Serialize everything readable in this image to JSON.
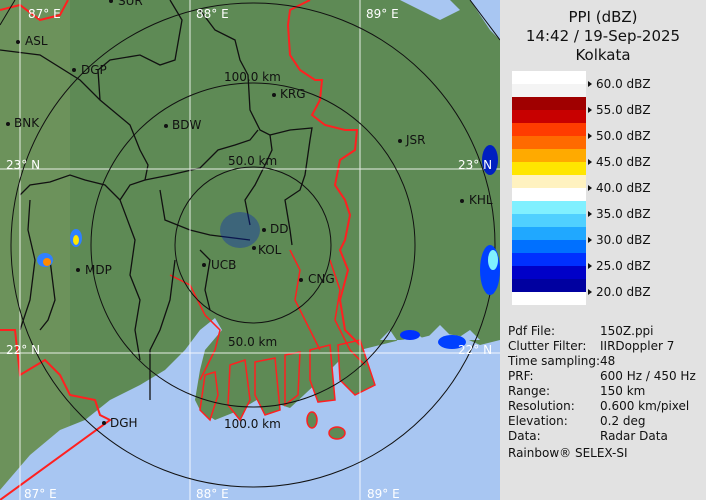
{
  "header": {
    "product": "PPI (dBZ)",
    "datetime": "14:42 / 19-Sep-2025",
    "station": "Kolkata"
  },
  "legend": [
    {
      "label": "60.0 dBZ",
      "colors": [
        "#ffffff",
        "#f4f4f4"
      ]
    },
    {
      "label": "55.0 dBZ",
      "colors": [
        "#a00000",
        "#c80000"
      ]
    },
    {
      "label": "50.0 dBZ",
      "colors": [
        "#ff3c00",
        "#ff6a00"
      ]
    },
    {
      "label": "45.0 dBZ",
      "colors": [
        "#ffaa00",
        "#ffe600"
      ]
    },
    {
      "label": "40.0 dBZ",
      "colors": [
        "#fff2c0",
        "#ffffff"
      ]
    },
    {
      "label": "35.0 dBZ",
      "colors": [
        "#80f0ff",
        "#50d0ff"
      ]
    },
    {
      "label": "30.0 dBZ",
      "colors": [
        "#20a8ff",
        "#0070ff"
      ]
    },
    {
      "label": "25.0 dBZ",
      "colors": [
        "#0030ff",
        "#0000c8"
      ]
    },
    {
      "label": "20.0 dBZ",
      "colors": [
        "#0000a0",
        "#ffffff"
      ]
    }
  ],
  "info": [
    {
      "key": "Pdf File:",
      "value": "150Z.ppi"
    },
    {
      "key": "Clutter Filter:",
      "value": "IIRDoppler 7"
    },
    {
      "key": "Time sampling:",
      "value": "48"
    },
    {
      "key": "PRF:",
      "value": "600 Hz / 450 Hz"
    },
    {
      "key": "Range:",
      "value": "150 km"
    },
    {
      "key": "Resolution:",
      "value": "0.600 km/pixel"
    },
    {
      "key": "Elevation:",
      "value": "0.2 deg"
    },
    {
      "key": "Data:",
      "value": "Radar Data"
    }
  ],
  "credit": "Rainbow® SELEX-SI",
  "map": {
    "colors": {
      "land": "#5e8a55",
      "sea": "#a8c6f2",
      "border": "#ff2020",
      "district": "#111111"
    },
    "grid": {
      "lon_top": [
        "87° E",
        "88° E",
        "89° E"
      ],
      "lon_bottom": [
        "87° E",
        "88° E",
        "89° E"
      ],
      "lat_left": [
        "23° N",
        "22° N"
      ],
      "lat_right": [
        "23° N",
        "22° N"
      ]
    },
    "rings": [
      "50.0 km",
      "100.0 km",
      "50.0 km",
      "100.0 km"
    ],
    "cities": [
      "SUR",
      "ASL",
      "DGP",
      "BNK",
      "BDW",
      "KRG",
      "JSR",
      "KHL",
      "MDP",
      "DD",
      "KOL",
      "UCB",
      "CNG",
      "DGH"
    ]
  }
}
